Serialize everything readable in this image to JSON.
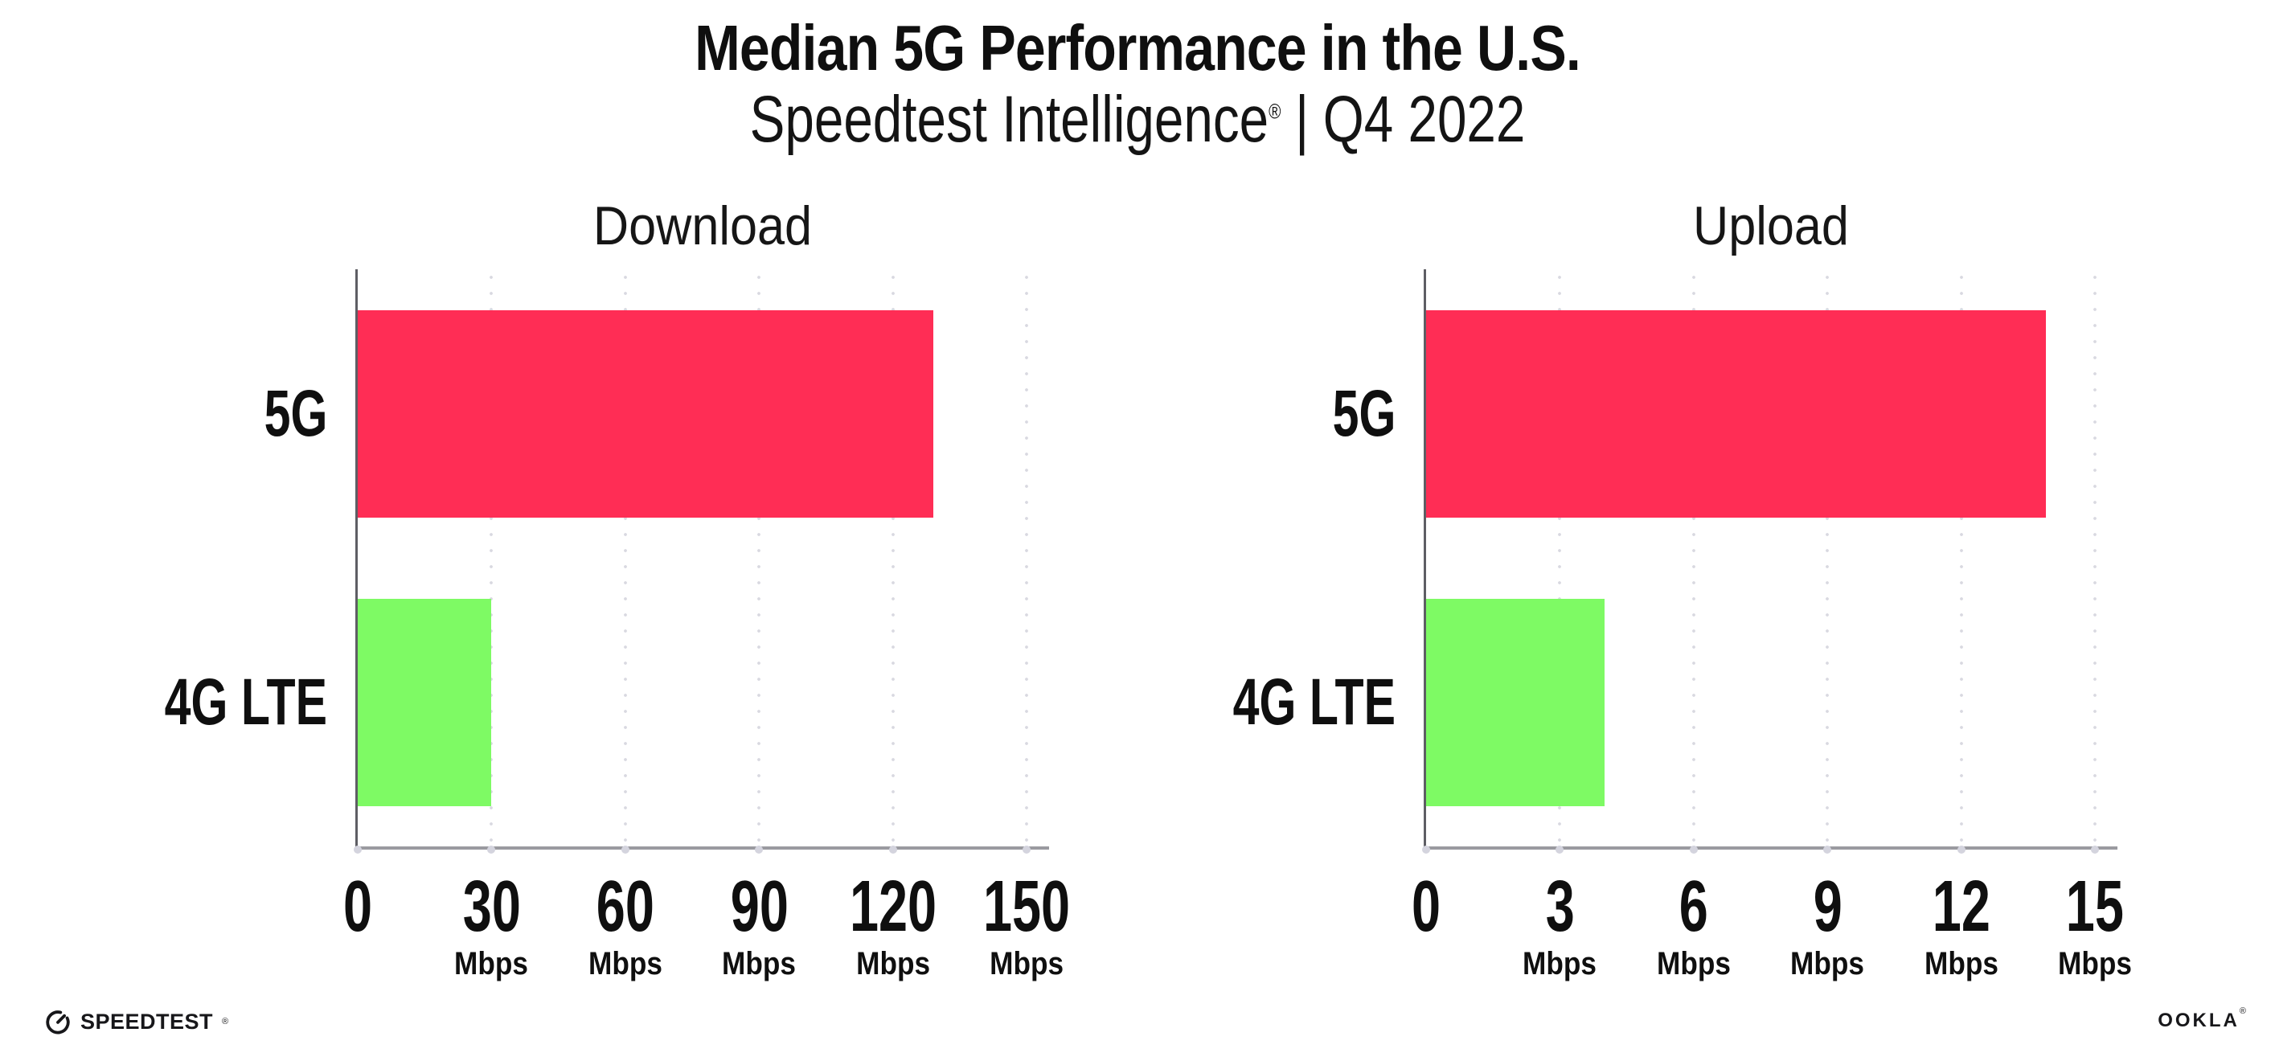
{
  "page": {
    "title": "Median 5G Performance in the U.S.",
    "subtitle": {
      "brand": "Speedtest Intelligence",
      "mark": "®",
      "separator": "|",
      "period": "Q4 2022"
    }
  },
  "footer": {
    "speedtest": {
      "wordmark": "SPEEDTEST",
      "mark": "®",
      "icon": "gauge-icon"
    },
    "ookla": {
      "wordmark": "OOKLA",
      "mark": "®"
    }
  },
  "colors": {
    "bar_5g": "#FF2D55",
    "bar_4g": "#7EFA64",
    "axis_bottom": "#9A9AA0",
    "axis_left": "#5E5E64",
    "grid_dot": "#D9D9E1",
    "text": "#121212"
  },
  "chart_data": [
    {
      "type": "bar",
      "orientation": "horizontal",
      "title": "Download",
      "categories": [
        "5G",
        "4G LTE"
      ],
      "values": [
        129,
        30
      ],
      "unit": "Mbps",
      "ticks": [
        0,
        30,
        60,
        90,
        120,
        150
      ],
      "tick_unit": "Mbps",
      "xlim": [
        0,
        155
      ],
      "grid": "dotted-vertical",
      "bar_colors": [
        "#FF2D55",
        "#7EFA64"
      ]
    },
    {
      "type": "bar",
      "orientation": "horizontal",
      "title": "Upload",
      "categories": [
        "5G",
        "4G LTE"
      ],
      "values": [
        13.9,
        4
      ],
      "unit": "Mbps",
      "ticks": [
        0,
        3,
        6,
        9,
        12,
        15
      ],
      "tick_unit": "Mbps",
      "xlim": [
        0,
        15.5
      ],
      "grid": "dotted-vertical",
      "bar_colors": [
        "#FF2D55",
        "#7EFA64"
      ]
    }
  ]
}
